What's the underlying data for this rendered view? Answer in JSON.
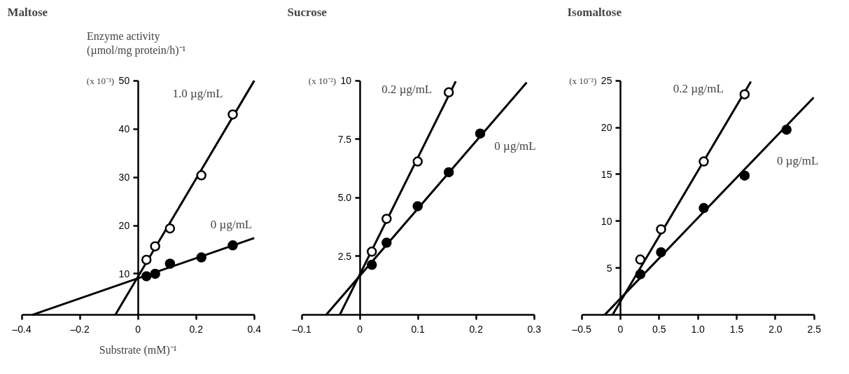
{
  "chart_data": [
    {
      "type": "scatter",
      "title": "Maltose",
      "ylabel": "Enzyme activity\n  (µmol/mg protein/h)⁻¹",
      "xlabel": "Substrate (mM)⁻¹",
      "xlim": [
        -0.4,
        0.4
      ],
      "xticks": [
        {
          "value": -0.4,
          "label": "–0.4"
        },
        {
          "value": -0.2,
          "label": "–0.2"
        },
        0,
        0.2,
        0.4
      ],
      "ylim": [
        1.5,
        50
      ],
      "yticks": [
        10,
        20,
        30,
        40,
        50
      ],
      "series": [
        {
          "type": "line",
          "color": "#000000",
          "x": [
            -0.078,
            0.4
          ],
          "values": [
            1.5,
            50
          ]
        },
        {
          "type": "line",
          "color": "#000000",
          "x": [
            -0.364,
            0.4
          ],
          "values": [
            1.5,
            17.4
          ]
        },
        {
          "name": "1.0 µg/mL",
          "marker": "circle",
          "color": "#ffffff",
          "x": [
            0.029,
            0.059,
            0.11,
            0.218,
            0.326
          ],
          "values": [
            12.9,
            15.7,
            19.4,
            30.4,
            43.0
          ]
        },
        {
          "name": "0 µg/mL",
          "marker": "circle",
          "color": "#000000",
          "x": [
            0.029,
            0.059,
            0.11,
            0.218,
            0.326
          ],
          "values": [
            9.5,
            10.0,
            12.1,
            13.4,
            15.9
          ]
        }
      ],
      "annotations": [
        "(x 10⁻³)"
      ]
    },
    {
      "type": "scatter",
      "title": "Sucrose",
      "xlim": [
        -0.1,
        0.3
      ],
      "xticks": [
        {
          "value": -0.1,
          "label": "–0.1"
        },
        0,
        0.1,
        0.2,
        0.3
      ],
      "ylim": [
        0,
        10
      ],
      "yticks": [
        2.5,
        {
          "value": 5,
          "label": "5.0"
        },
        7.5,
        10
      ],
      "series": [
        {
          "type": "line",
          "color": "#000000",
          "x": [
            -0.0346,
            0.165
          ],
          "values": [
            0,
            9.97
          ]
        },
        {
          "type": "line",
          "color": "#000000",
          "x": [
            -0.058,
            0.287
          ],
          "values": [
            0,
            9.92
          ]
        },
        {
          "name": "0.2 µg/mL",
          "marker": "circle",
          "color": "#ffffff",
          "x": [
            0.0206,
            0.046,
            0.0995,
            0.153
          ],
          "values": [
            2.7,
            4.1,
            6.55,
            9.5
          ]
        },
        {
          "name": "0 µg/mL",
          "marker": "circle",
          "color": "#000000",
          "x": [
            0.0206,
            0.046,
            0.0995,
            0.153,
            0.207
          ],
          "values": [
            2.14,
            3.08,
            4.64,
            6.09,
            7.74
          ]
        }
      ],
      "annotations": [
        "(x 10⁻²)"
      ]
    },
    {
      "type": "scatter",
      "title": "Isomaltose",
      "xlim": [
        -0.5,
        2.5
      ],
      "xticks": [
        {
          "value": -0.5,
          "label": "–0.5"
        },
        0,
        0.5,
        {
          "value": 1,
          "label": "1.0"
        },
        1.5,
        {
          "value": 2,
          "label": "2.0"
        },
        2.5
      ],
      "ylim": [
        0,
        25
      ],
      "yticks": [
        5,
        10,
        15,
        20,
        25
      ],
      "series": [
        {
          "type": "line",
          "color": "#000000",
          "x": [
            -0.102,
            1.683
          ],
          "values": [
            0,
            24.9
          ]
        },
        {
          "type": "line",
          "color": "#000000",
          "x": [
            -0.204,
            2.493
          ],
          "values": [
            0,
            23.2
          ]
        },
        {
          "name": "0.2 µg/mL",
          "marker": "circle",
          "color": "#ffffff",
          "x": [
            0.256,
            0.524,
            1.075,
            1.602
          ],
          "values": [
            5.91,
            9.13,
            16.37,
            23.54
          ]
        },
        {
          "name": "0 µg/mL",
          "marker": "circle",
          "color": "#000000",
          "x": [
            0.256,
            0.524,
            1.075,
            1.602,
            2.143
          ],
          "values": [
            4.33,
            6.68,
            11.4,
            14.87,
            19.76
          ]
        }
      ],
      "annotations": [
        "(x 10⁻²)"
      ]
    }
  ]
}
